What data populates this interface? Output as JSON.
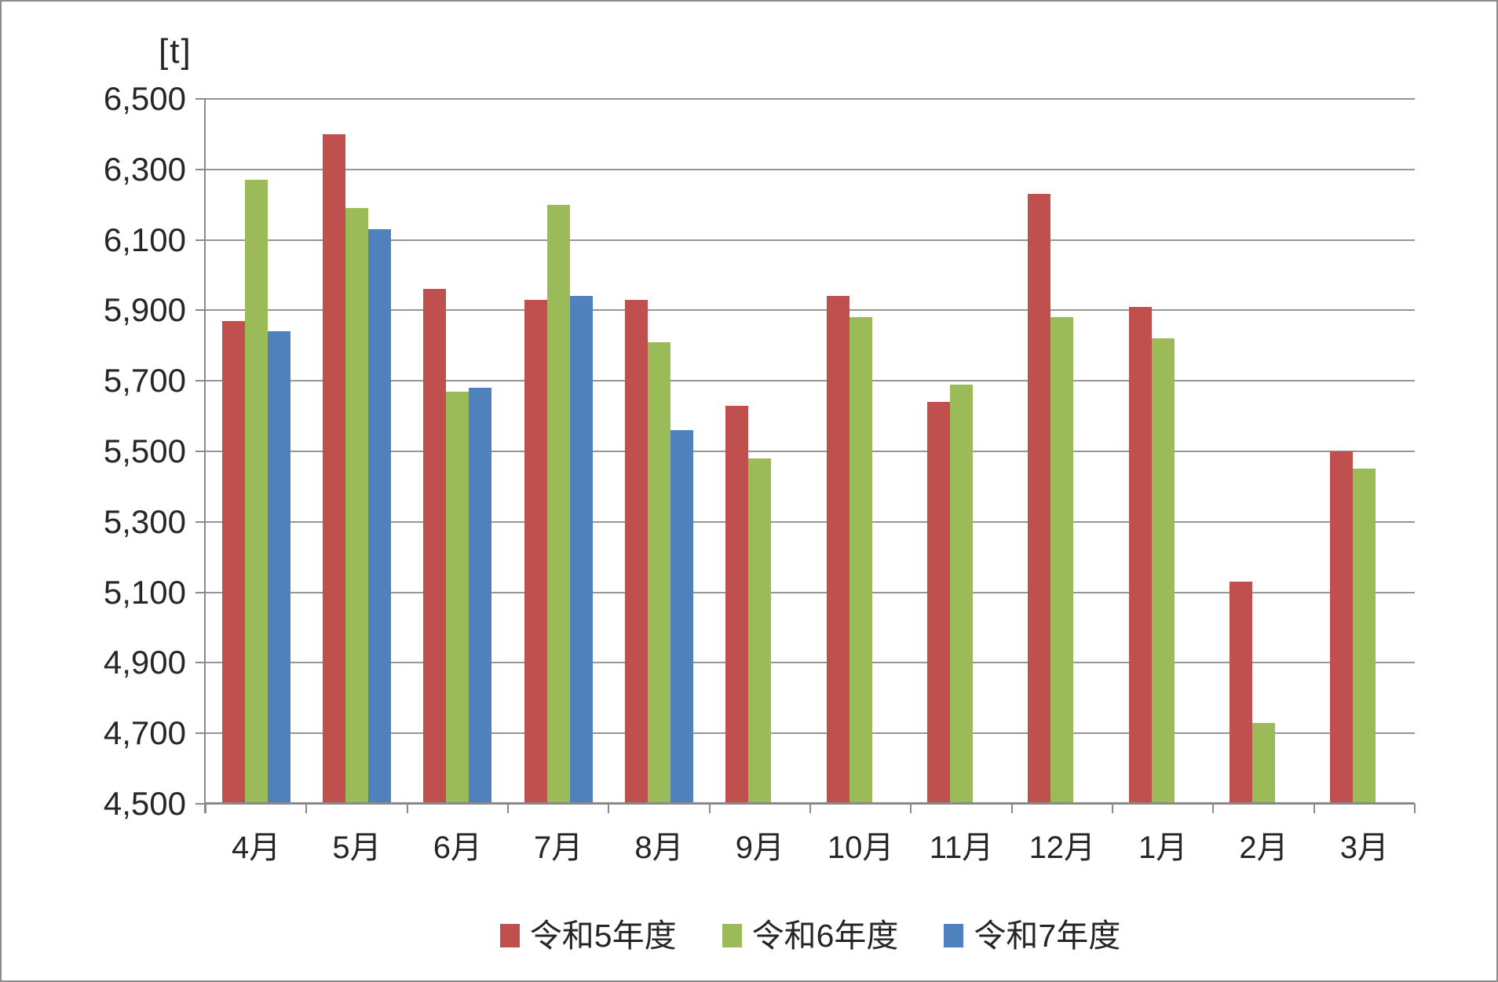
{
  "chart_data": {
    "type": "bar",
    "title": "",
    "unit_label": "[t]",
    "xlabel": "",
    "ylabel": "t",
    "categories": [
      "4月",
      "5月",
      "6月",
      "7月",
      "8月",
      "9月",
      "10月",
      "11月",
      "12月",
      "1月",
      "2月",
      "3月"
    ],
    "series": [
      {
        "name": "令和5年度",
        "color": "#C0504D",
        "values": [
          5870,
          6400,
          5960,
          5930,
          5930,
          5630,
          5940,
          5640,
          6230,
          5910,
          5130,
          5500
        ]
      },
      {
        "name": "令和6年度",
        "color": "#9BBB59",
        "values": [
          6270,
          6190,
          5670,
          6200,
          5810,
          5480,
          5880,
          5690,
          5880,
          5820,
          4730,
          5450
        ]
      },
      {
        "name": "令和7年度",
        "color": "#4F81BD",
        "values": [
          5840,
          6130,
          5680,
          5940,
          5560,
          null,
          null,
          null,
          null,
          null,
          null,
          null
        ]
      }
    ],
    "ylim": [
      4500,
      6500
    ],
    "ytick_step": 200,
    "y_tick_labels": [
      "4,500",
      "4,700",
      "4,900",
      "5,100",
      "5,300",
      "5,500",
      "5,700",
      "5,900",
      "6,100",
      "6,300",
      "6,500"
    ],
    "grid": "horizontal",
    "legend_position": "bottom",
    "gridline_color": "#969696",
    "axis_color": "#8a8a8a",
    "text_color": "#262626"
  }
}
